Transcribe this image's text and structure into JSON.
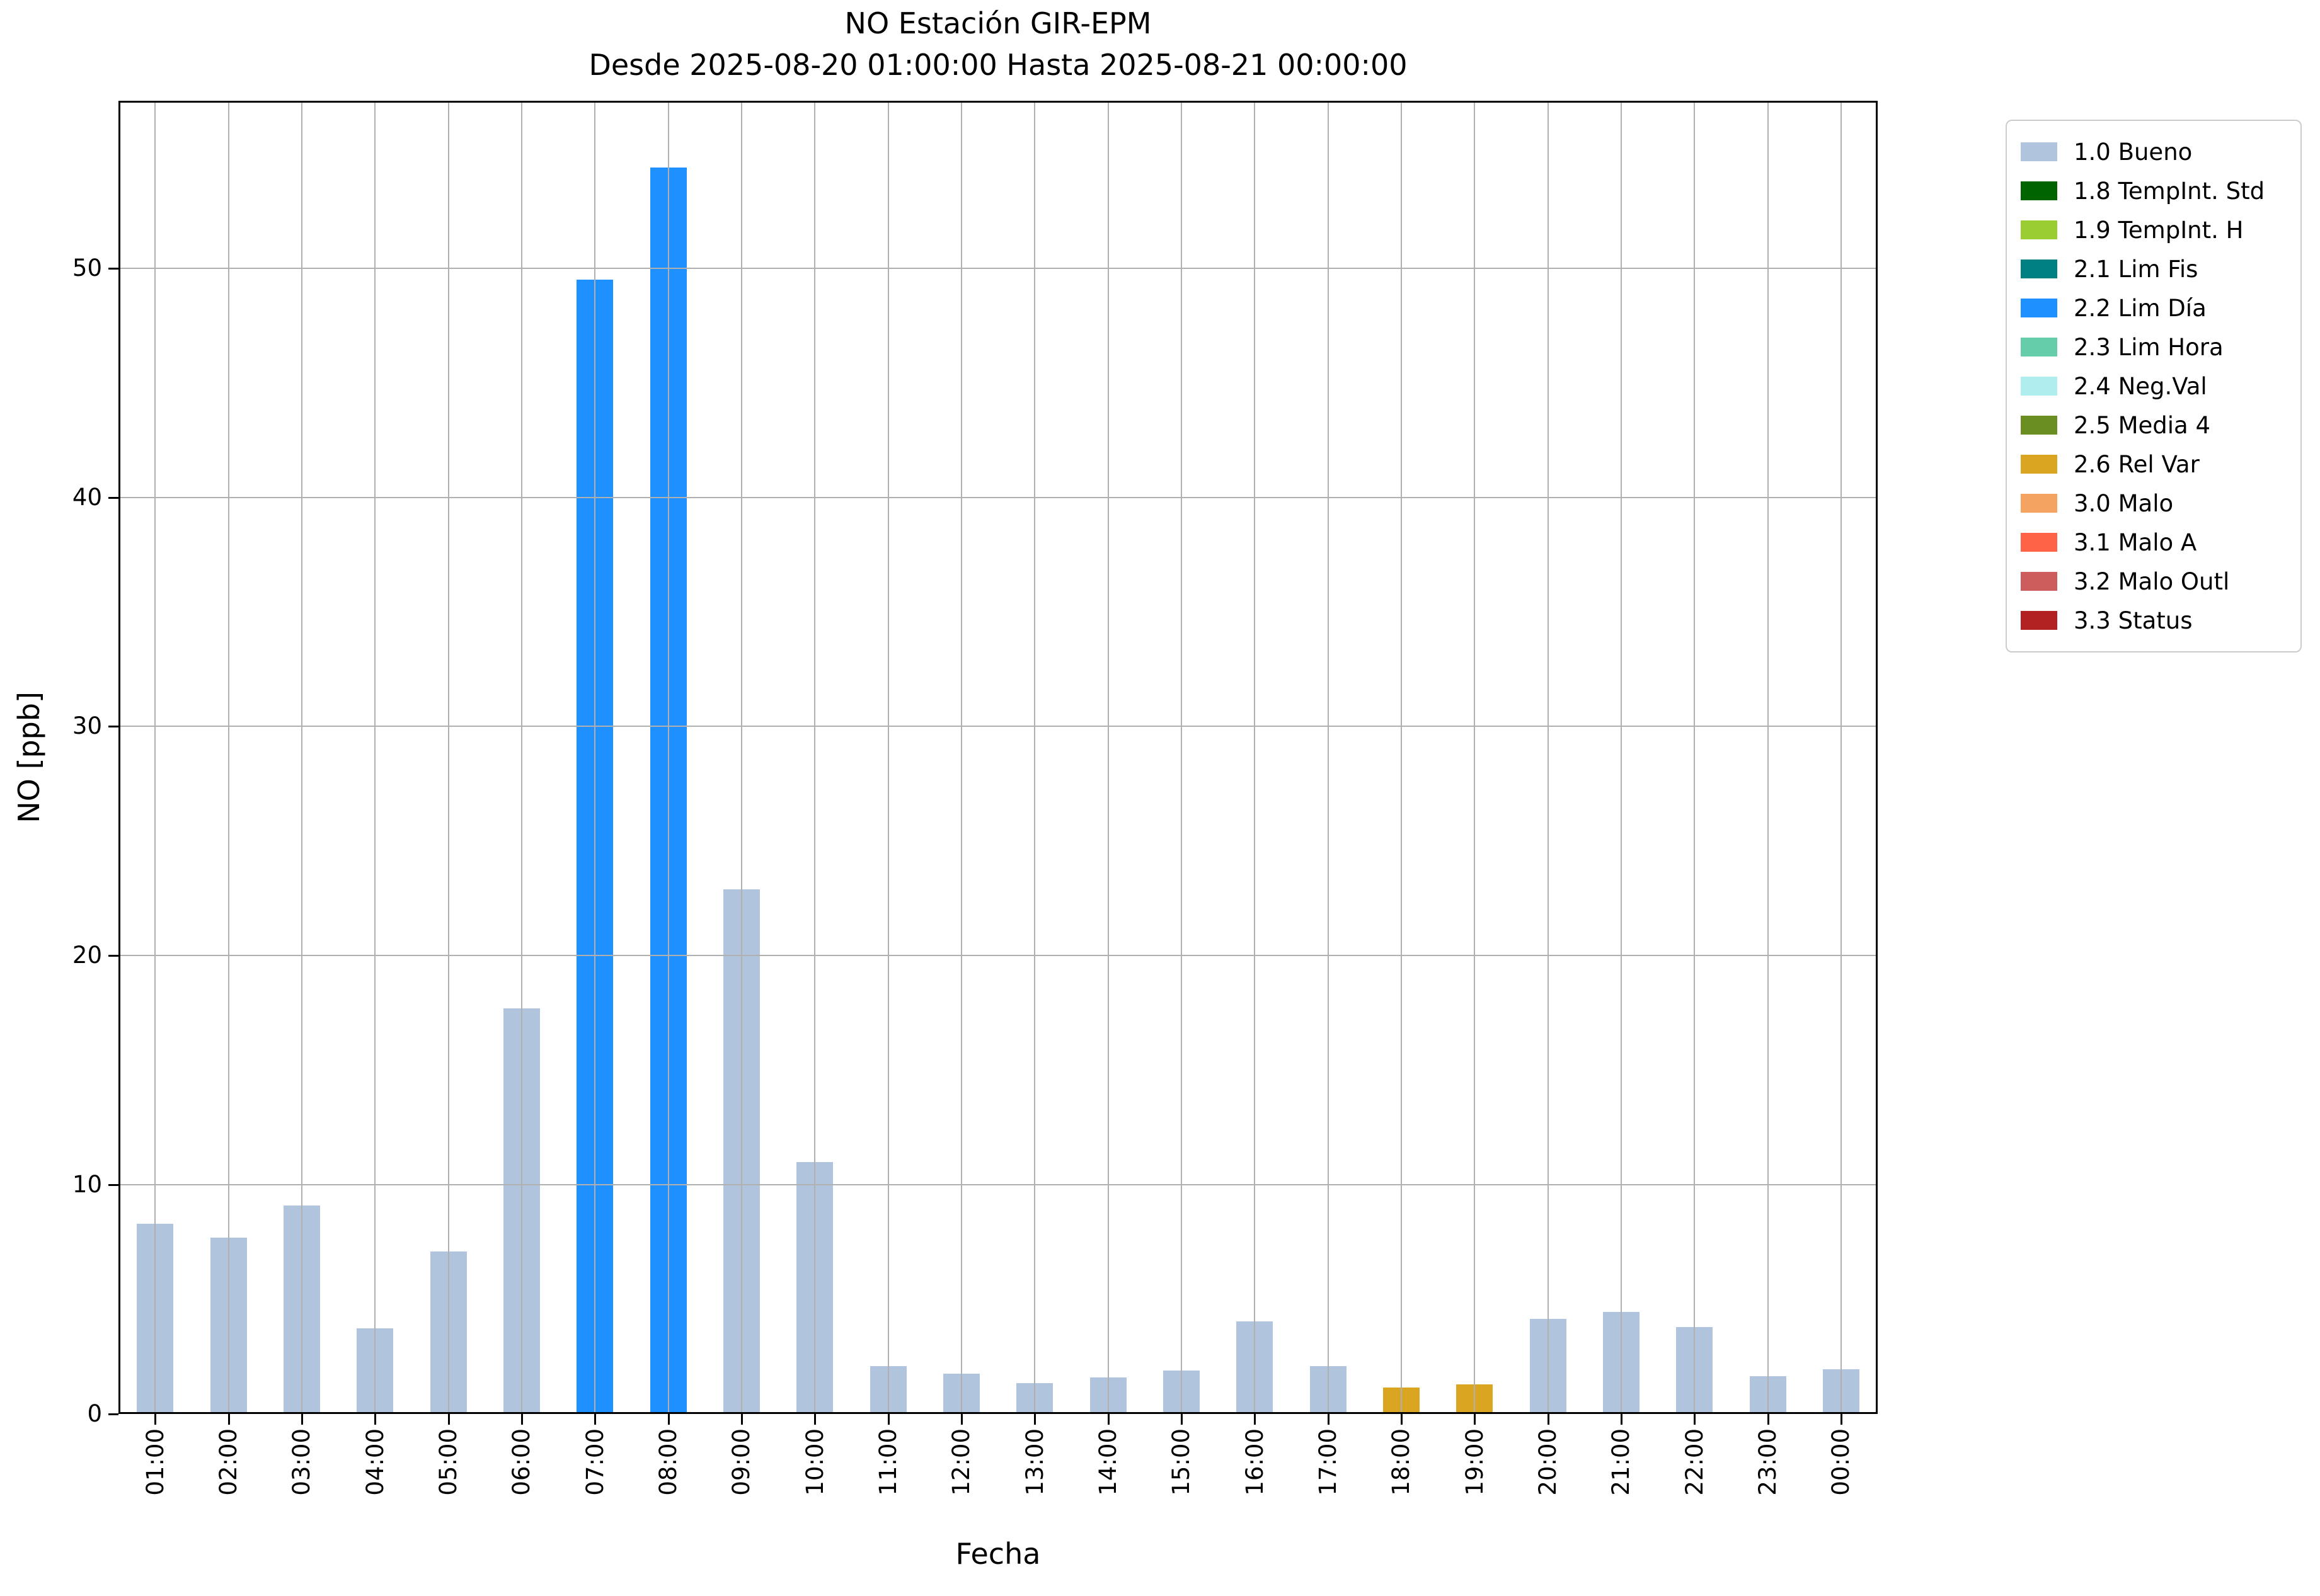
{
  "chart_data": {
    "type": "bar",
    "title": "NO Estación GIR-EPM",
    "subtitle": "Desde 2025-08-20 01:00:00 Hasta 2025-08-21 00:00:00",
    "xlabel": "Fecha",
    "ylabel": "NO [ppb]",
    "categories": [
      "01:00",
      "02:00",
      "03:00",
      "04:00",
      "05:00",
      "06:00",
      "07:00",
      "08:00",
      "09:00",
      "10:00",
      "11:00",
      "12:00",
      "13:00",
      "14:00",
      "15:00",
      "16:00",
      "17:00",
      "18:00",
      "19:00",
      "20:00",
      "21:00",
      "22:00",
      "23:00",
      "00:00"
    ],
    "values": [
      8.3,
      7.7,
      9.1,
      3.75,
      7.1,
      17.7,
      49.5,
      54.4,
      22.9,
      11.0,
      2.1,
      1.75,
      1.35,
      1.6,
      1.9,
      4.05,
      2.1,
      1.15,
      1.3,
      4.15,
      4.45,
      3.8,
      1.65,
      1.95
    ],
    "flags": [
      "1.0 Bueno",
      "1.0 Bueno",
      "1.0 Bueno",
      "1.0 Bueno",
      "1.0 Bueno",
      "1.0 Bueno",
      "2.2 Lim Día",
      "2.2 Lim Día",
      "1.0 Bueno",
      "1.0 Bueno",
      "1.0 Bueno",
      "1.0 Bueno",
      "1.0 Bueno",
      "1.0 Bueno",
      "1.0 Bueno",
      "1.0 Bueno",
      "1.0 Bueno",
      "2.6 Rel Var",
      "2.6 Rel Var",
      "1.0 Bueno",
      "1.0 Bueno",
      "1.0 Bueno",
      "1.0 Bueno",
      "1.0 Bueno"
    ],
    "yticks": [
      0,
      10,
      20,
      30,
      40,
      50
    ],
    "ylim": [
      0,
      57.3
    ],
    "grid": true,
    "grid_color": "#b0b0b0",
    "legend_position": "outside upper right",
    "legend": [
      {
        "label": "1.0 Bueno",
        "color": "#b0c4de"
      },
      {
        "label": "1.8 TempInt. Std",
        "color": "#006400"
      },
      {
        "label": "1.9 TempInt. H",
        "color": "#9acd32"
      },
      {
        "label": "2.1 Lim Fis",
        "color": "#008080"
      },
      {
        "label": "2.2 Lim Día",
        "color": "#1e90ff"
      },
      {
        "label": "2.3 Lim Hora",
        "color": "#66cdaa"
      },
      {
        "label": "2.4 Neg.Val",
        "color": "#afeeee"
      },
      {
        "label": "2.5 Media 4",
        "color": "#6b8e23"
      },
      {
        "label": "2.6 Rel Var",
        "color": "#daa520"
      },
      {
        "label": "3.0 Malo",
        "color": "#f4a460"
      },
      {
        "label": "3.1 Malo A",
        "color": "#ff6347"
      },
      {
        "label": "3.2 Malo Outl",
        "color": "#cd5c5c"
      },
      {
        "label": "3.3 Status",
        "color": "#b22222"
      }
    ]
  }
}
